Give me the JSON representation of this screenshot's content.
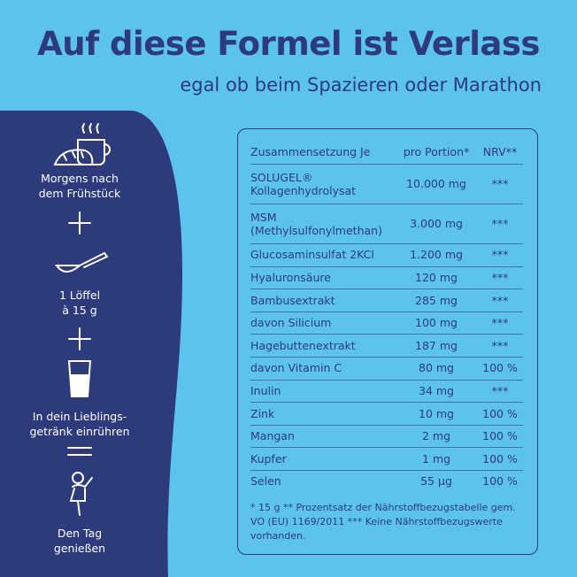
{
  "header": {
    "title": "Auf diese Formel ist Verlass",
    "subtitle": "egal ob beim Spazieren oder Marathon"
  },
  "steps": [
    {
      "label": [
        "Morgens nach",
        "dem Frühstück"
      ]
    },
    {
      "label": [
        "1 Löffel",
        "à 15 g"
      ]
    },
    {
      "label": [
        "In dein Lieblings-",
        "getränk einrühren"
      ]
    },
    {
      "label": [
        "Den Tag",
        "genießen"
      ]
    }
  ],
  "table": {
    "columns": [
      "Zusammensetzung Je",
      "pro Portion*",
      "NRV**"
    ],
    "rows": [
      {
        "name": [
          "SOLUGEL®",
          "Kollagenhydrolysat"
        ],
        "amount": "10.000 mg",
        "nrv": "***"
      },
      {
        "name": [
          "MSM",
          "(Methylsulfonylmethan)"
        ],
        "amount": "3.000 mg",
        "nrv": "***"
      },
      {
        "name": [
          "Glucosaminsulfat 2KCl"
        ],
        "amount": "1.200 mg",
        "nrv": "***"
      },
      {
        "name": [
          "Hyaluronsäure"
        ],
        "amount": "120 mg",
        "nrv": "***"
      },
      {
        "name": [
          "Bambusextrakt"
        ],
        "amount": "285 mg",
        "nrv": "***"
      },
      {
        "name": [
          "davon Silicium"
        ],
        "amount": "100 mg",
        "nrv": "***"
      },
      {
        "name": [
          "Hagebuttenextrakt"
        ],
        "amount": "187 mg",
        "nrv": "***"
      },
      {
        "name": [
          "davon Vitamin C"
        ],
        "amount": "80 mg",
        "nrv": "100 %"
      },
      {
        "name": [
          "Inulin"
        ],
        "amount": "34 mg",
        "nrv": "***"
      },
      {
        "name": [
          "Zink"
        ],
        "amount": "10 mg",
        "nrv": "100 %"
      },
      {
        "name": [
          "Mangan"
        ],
        "amount": "2 mg",
        "nrv": "100 %"
      },
      {
        "name": [
          "Kupfer"
        ],
        "amount": "1 mg",
        "nrv": "100 %"
      },
      {
        "name": [
          "Selen"
        ],
        "amount": "55 µg",
        "nrv": "100 %"
      }
    ],
    "footnote": [
      "* 15 g ** Prozentsatz der Nährstoffbezugstabelle gem.",
      "VO (EU) 1169/2011 *** Keine Nährstoffbezugswerte",
      "vorhanden."
    ]
  }
}
